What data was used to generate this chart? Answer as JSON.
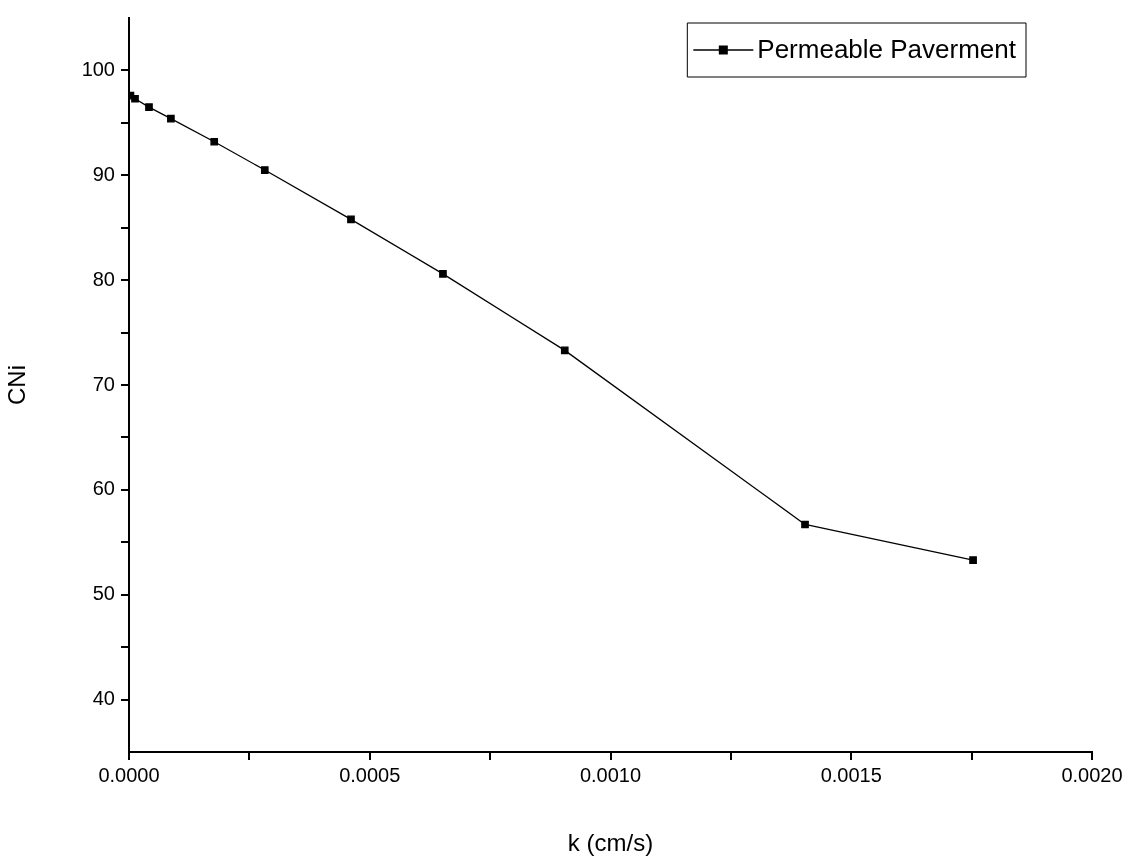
{
  "chart_data": {
    "type": "line",
    "xlabel": "k (cm/s)",
    "ylabel": "CNi",
    "x": [
      3e-06,
      1.25e-05,
      4.15e-05,
      8.7e-05,
      0.000177,
      0.000282,
      0.000461,
      0.000652,
      0.000905,
      0.001404,
      0.001753
    ],
    "series": [
      {
        "name": "Permeable Paverment",
        "color": "#000000",
        "values": [
          97.6,
          97.3,
          96.5,
          95.4,
          93.2,
          90.5,
          85.8,
          80.6,
          73.3,
          56.7,
          53.3
        ]
      }
    ],
    "xlim": [
      0,
      0.002
    ],
    "ylim": [
      35,
      105
    ],
    "xticks": [
      {
        "value": 0,
        "label": "0.0000"
      },
      {
        "value": 0.00025,
        "label": null
      },
      {
        "value": 0.0005,
        "label": "0.0005"
      },
      {
        "value": 0.00075,
        "label": null
      },
      {
        "value": 0.001,
        "label": "0.0010"
      },
      {
        "value": 0.00125,
        "label": null
      },
      {
        "value": 0.0015,
        "label": "0.0015"
      },
      {
        "value": 0.00175,
        "label": null
      },
      {
        "value": 0.002,
        "label": "0.0020"
      }
    ],
    "yticks": [
      40,
      {
        "value": 45,
        "label": null
      },
      50,
      {
        "value": 55,
        "label": null
      },
      60,
      {
        "value": 65,
        "label": null
      },
      70,
      {
        "value": 75,
        "label": null
      },
      80,
      {
        "value": 85,
        "label": null
      },
      90,
      {
        "value": 95,
        "label": null
      },
      100
    ],
    "grid": false,
    "legend": "top right",
    "marker": "square",
    "line_style": "solid"
  }
}
